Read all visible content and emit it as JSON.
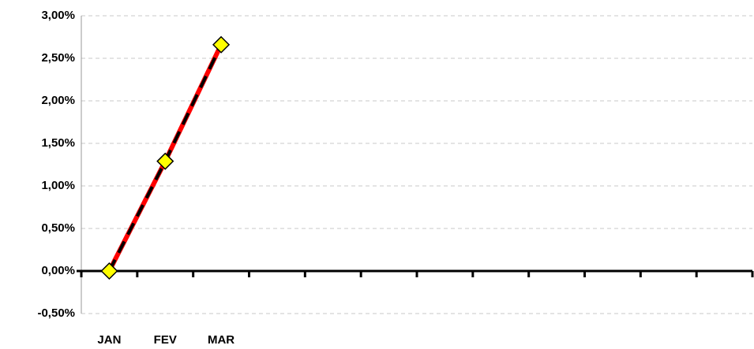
{
  "chart_data": {
    "type": "line",
    "categories": [
      "JAN",
      "FEV",
      "MAR",
      null,
      null,
      null,
      null,
      null,
      null,
      null,
      null,
      null
    ],
    "series": [
      {
        "color": "#ff0000",
        "marker_color": "#ffff00",
        "values": [
          0,
          1.29,
          2.66,
          null,
          null,
          null,
          null,
          null,
          null,
          null,
          null,
          null
        ]
      }
    ],
    "ylim": [
      -0.5,
      3.0
    ],
    "yticks": [
      {
        "value": -0.5,
        "label": "-0,50%"
      },
      {
        "value": 0,
        "label": "0,00%"
      },
      {
        "value": 0.5,
        "label": "0,50%"
      },
      {
        "value": 1.0,
        "label": "1,00%"
      },
      {
        "value": 1.5,
        "label": "1,50%"
      },
      {
        "value": 2.0,
        "label": "2,00%"
      },
      {
        "value": 2.5,
        "label": "2,50%"
      },
      {
        "value": 3.0,
        "label": "3,00%"
      }
    ],
    "grid": true
  }
}
